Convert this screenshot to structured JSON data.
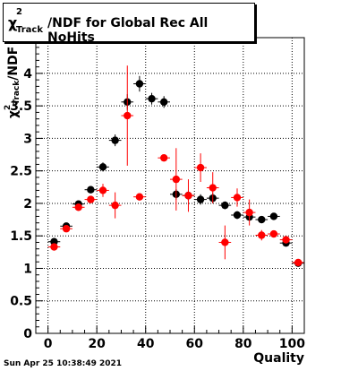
{
  "chart_data": {
    "type": "scatter",
    "title": {
      "prefix": "χ",
      "superscript": "2",
      "subscript": "Track",
      "rest": "/NDF for Global Rec All NoHits"
    },
    "xlabel": "Quality",
    "ylabel": {
      "prefix": "χ",
      "superscript": "2",
      "subscript": "Track",
      "rest": "/NDF"
    },
    "xlim": [
      -5,
      105
    ],
    "ylim": [
      0,
      4.55
    ],
    "xticks": [
      0,
      20,
      40,
      60,
      80,
      100
    ],
    "xtick_labels": [
      "0",
      "20",
      "40",
      "60",
      "80",
      "100"
    ],
    "yticks": [
      0,
      0.5,
      1,
      1.5,
      2,
      2.5,
      3,
      3.5,
      4
    ],
    "ytick_labels": [
      "0",
      "0.5",
      "1",
      "1.5",
      "2",
      "2.5",
      "3",
      "3.5",
      "4"
    ],
    "grid": true,
    "series": [
      {
        "color": "#000000",
        "x": [
          2.5,
          7.5,
          12.5,
          17.5,
          22.5,
          27.5,
          32.5,
          37.5,
          42.5,
          47.5,
          52.5,
          57.5,
          62.5,
          67.5,
          72.5,
          77.5,
          82.5,
          87.5,
          92.5,
          97.5,
          102.5
        ],
        "y": [
          1.41,
          1.65,
          1.99,
          2.21,
          2.56,
          2.97,
          3.56,
          3.84,
          3.61,
          3.56,
          2.14,
          2.12,
          2.06,
          2.08,
          1.97,
          1.82,
          1.79,
          1.75,
          1.8,
          1.39,
          1.08
        ],
        "err": [
          0.05,
          0.05,
          0.05,
          0.05,
          0.07,
          0.09,
          0.12,
          0.12,
          0.09,
          0.09,
          0.08,
          0.08,
          0.08,
          0.08,
          0.06,
          0.06,
          0.06,
          0.05,
          0.05,
          0.05,
          0.04
        ]
      },
      {
        "color": "#ff0000",
        "x": [
          2.5,
          7.5,
          12.5,
          17.5,
          22.5,
          27.5,
          32.5,
          37.5,
          47.5,
          52.5,
          57.5,
          62.5,
          67.5,
          72.5,
          77.5,
          82.5,
          87.5,
          92.5,
          97.5,
          102.5
        ],
        "y": [
          1.33,
          1.61,
          1.94,
          2.06,
          2.2,
          1.97,
          3.35,
          2.1,
          2.7,
          2.37,
          2.12,
          2.55,
          2.24,
          1.4,
          2.09,
          1.86,
          1.51,
          1.53,
          1.44,
          1.09
        ],
        "err": [
          0.04,
          0.05,
          0.05,
          0.05,
          0.1,
          0.2,
          0.77,
          0.04,
          0.04,
          0.48,
          0.25,
          0.22,
          0.24,
          0.26,
          0.14,
          0.2,
          0.08,
          0.04,
          0.05,
          0.04
        ]
      }
    ]
  },
  "footer": {
    "timestamp": "Sun Apr 25 10:38:49 2021"
  }
}
